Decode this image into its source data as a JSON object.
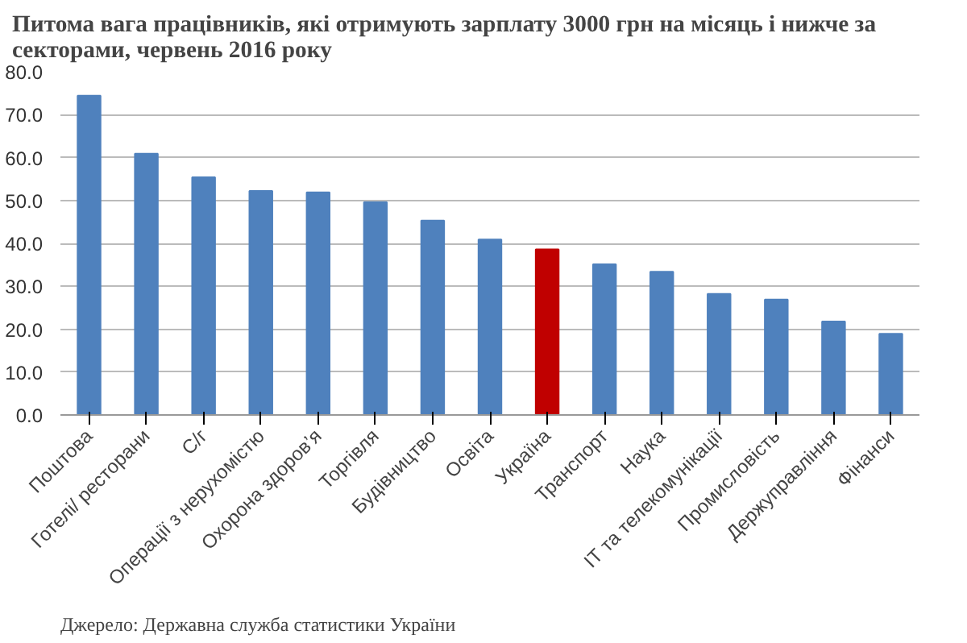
{
  "chart_data": {
    "type": "bar",
    "title": "Питома вага працівників, які отримують зарплату 3000 грн на місяць і нижче за\nсекторами, червень 2016 року",
    "categories": [
      "Поштова",
      "Готелі/ ресторани",
      "С/г",
      "Операції з нерухомістю",
      "Охорона здоров’я",
      "Торгівля",
      "Будівництво",
      "Освіта",
      "Україна",
      "Транспорт",
      "Наука",
      "ІТ та телекомунікації",
      "Промисловість",
      "Держуправління",
      "Фінанси"
    ],
    "values": [
      74.4,
      60.9,
      55.4,
      52.2,
      51.9,
      49.6,
      45.3,
      40.9,
      38.6,
      35.1,
      33.4,
      28.2,
      26.9,
      21.8,
      18.9
    ],
    "colors": [
      "#4f81bd",
      "#4f81bd",
      "#4f81bd",
      "#4f81bd",
      "#4f81bd",
      "#4f81bd",
      "#4f81bd",
      "#4f81bd",
      "#c00000",
      "#4f81bd",
      "#4f81bd",
      "#4f81bd",
      "#4f81bd",
      "#4f81bd",
      "#4f81bd"
    ],
    "ylim": [
      0,
      80
    ],
    "yticks": [
      {
        "value": 0,
        "label": "0.0"
      },
      {
        "value": 10,
        "label": "10.0"
      },
      {
        "value": 20,
        "label": "20.0"
      },
      {
        "value": 30,
        "label": "30.0"
      },
      {
        "value": 40,
        "label": "40.0"
      },
      {
        "value": 50,
        "label": "50.0"
      },
      {
        "value": 60,
        "label": "60.0"
      },
      {
        "value": 70,
        "label": "70.0"
      },
      {
        "value": 80,
        "label": "80.0"
      }
    ],
    "grid": "y",
    "annotations": [
      "Джерело: Державна служба статистики України"
    ]
  }
}
